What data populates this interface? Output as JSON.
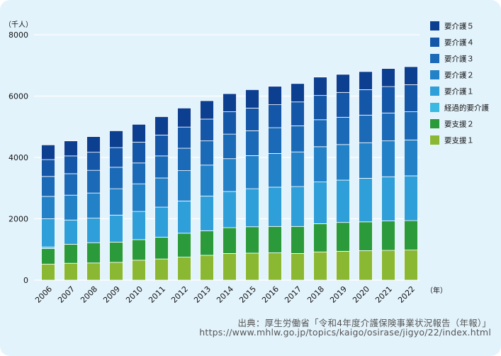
{
  "chart_data": {
    "type": "bar",
    "stacked": true,
    "y_unit_label": "（千人）",
    "x_unit_label": "（年）",
    "ylim": [
      0,
      8000
    ],
    "yticks": [
      0,
      2000,
      4000,
      6000,
      8000
    ],
    "grid": true,
    "legend_position": "right",
    "categories": [
      "2006",
      "2007",
      "2008",
      "2009",
      "2010",
      "2011",
      "2012",
      "2013",
      "2014",
      "2015",
      "2016",
      "2017",
      "2018",
      "2019",
      "2020",
      "2021",
      "2022"
    ],
    "series": [
      {
        "name": "要支援１",
        "color": "#8ab832",
        "values": [
          520,
          550,
          560,
          580,
          650,
          690,
          750,
          810,
          870,
          880,
          890,
          870,
          920,
          940,
          960,
          970,
          980
        ]
      },
      {
        "name": "要支援２",
        "color": "#2a9a3a",
        "values": [
          510,
          620,
          660,
          660,
          670,
          710,
          780,
          800,
          840,
          860,
          860,
          880,
          920,
          940,
          940,
          960,
          960
        ]
      },
      {
        "name": "経過的要介護",
        "color": "#3ab9e2",
        "values": [
          50,
          0,
          0,
          0,
          0,
          0,
          0,
          0,
          0,
          0,
          0,
          0,
          0,
          0,
          0,
          0,
          0
        ]
      },
      {
        "name": "要介護１",
        "color": "#2e9fd8",
        "values": [
          920,
          790,
          800,
          880,
          920,
          980,
          1050,
          1130,
          1180,
          1240,
          1280,
          1300,
          1360,
          1380,
          1420,
          1440,
          1460
        ]
      },
      {
        "name": "要介護２",
        "color": "#2381c8",
        "values": [
          730,
          810,
          820,
          860,
          900,
          950,
          990,
          1010,
          1070,
          1080,
          1100,
          1130,
          1150,
          1160,
          1160,
          1170,
          1170
        ]
      },
      {
        "name": "要介護３",
        "color": "#1a6ab8",
        "values": [
          650,
          700,
          740,
          700,
          680,
          720,
          730,
          790,
          800,
          810,
          840,
          850,
          880,
          890,
          900,
          910,
          920
        ]
      },
      {
        "name": "要介護４",
        "color": "#1457a8",
        "values": [
          550,
          580,
          590,
          640,
          680,
          680,
          690,
          710,
          730,
          740,
          750,
          780,
          790,
          810,
          830,
          860,
          880
        ]
      },
      {
        "name": "要介護５",
        "color": "#0d3f90",
        "values": [
          480,
          490,
          510,
          550,
          580,
          600,
          620,
          600,
          590,
          600,
          600,
          600,
          600,
          590,
          590,
          590,
          590
        ]
      }
    ],
    "legend_order": [
      "要介護５",
      "要介護４",
      "要介護３",
      "要介護２",
      "要介護１",
      "経過的要介護",
      "要支援２",
      "要支援１"
    ]
  },
  "source": {
    "line1": "出典：厚生労働省「令和4年度介護保険事業状況報告（年報）」",
    "line2": "https://www.mhlw.go.jp/topics/kaigo/osirase/jigyo/22/index.html"
  }
}
